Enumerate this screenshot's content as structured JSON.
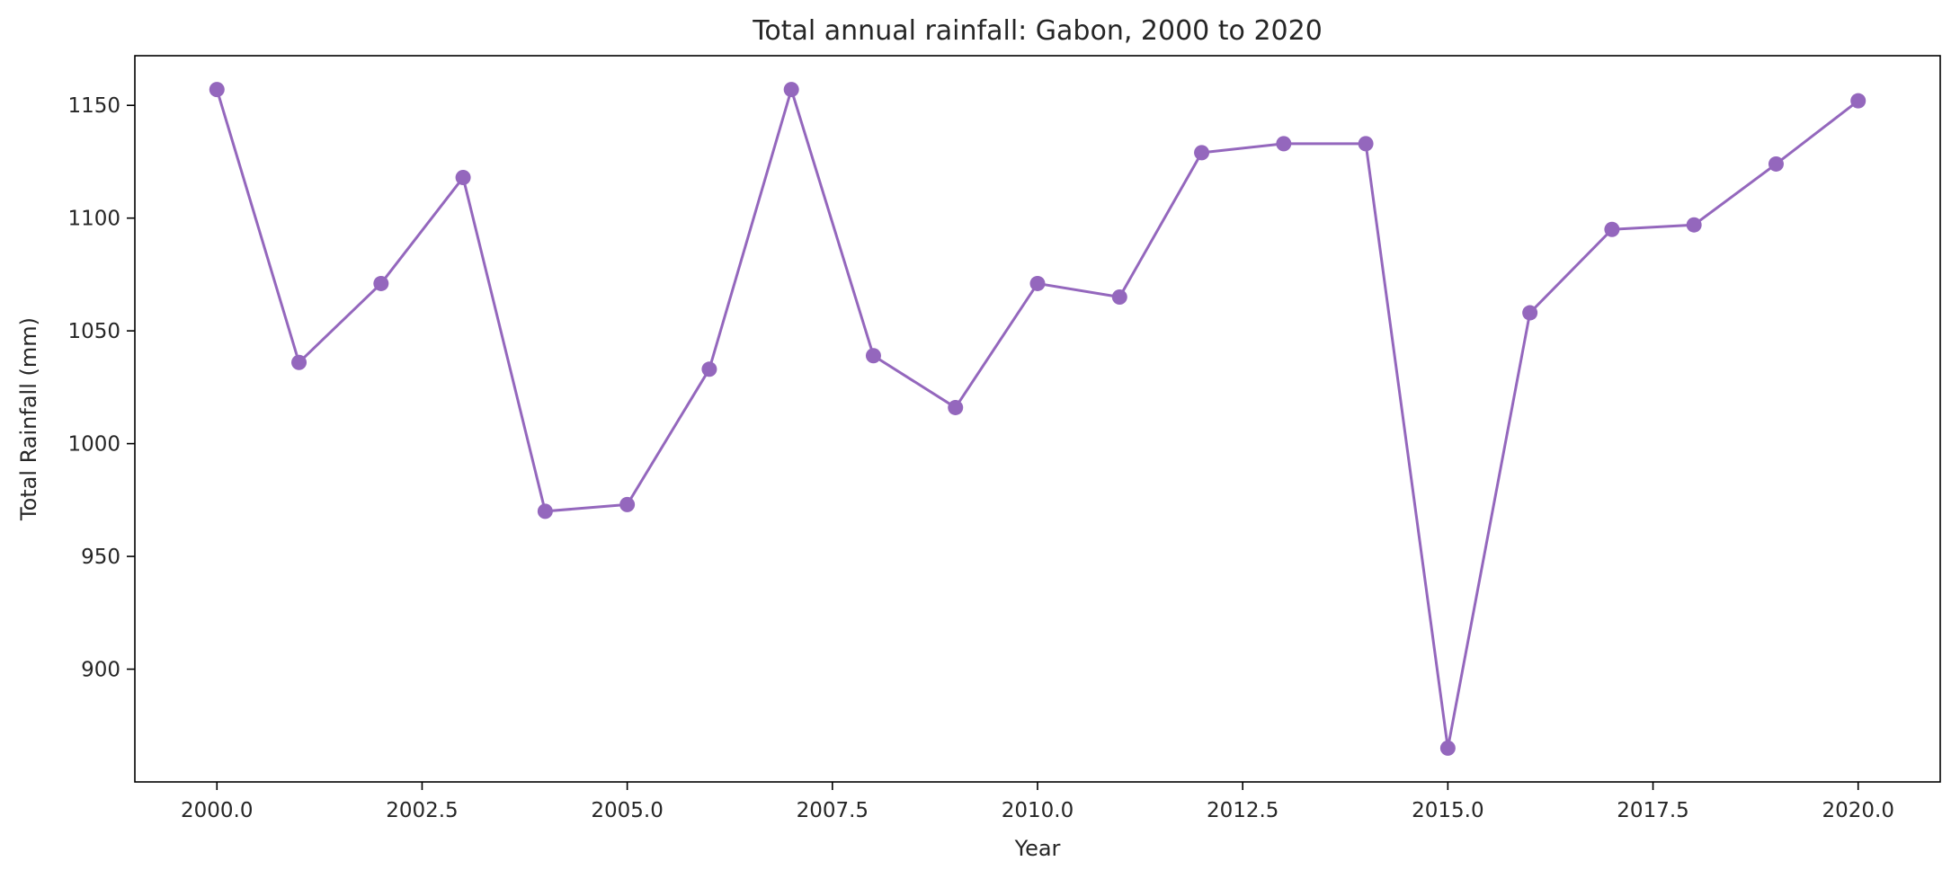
{
  "chart_data": {
    "type": "line",
    "title": "Total annual rainfall: Gabon, 2000 to 2020",
    "xlabel": "Year",
    "ylabel": "Total Rainfall (mm)",
    "xlim": [
      1999.0,
      2021.0
    ],
    "ylim": [
      850,
      1172
    ],
    "xticks": [
      2000.0,
      2002.5,
      2005.0,
      2007.5,
      2010.0,
      2012.5,
      2015.0,
      2017.5,
      2020.0
    ],
    "xtick_labels": [
      "2000.0",
      "2002.5",
      "2005.0",
      "2007.5",
      "2010.0",
      "2012.5",
      "2015.0",
      "2017.5",
      "2020.0"
    ],
    "yticks": [
      900,
      950,
      1000,
      1050,
      1100,
      1150
    ],
    "ytick_labels": [
      "900",
      "950",
      "1000",
      "1050",
      "1100",
      "1150"
    ],
    "grid": false,
    "legend": "none",
    "series": [
      {
        "color": "#9467bd",
        "marker": "circle",
        "x": [
          2000,
          2001,
          2002,
          2003,
          2004,
          2005,
          2006,
          2007,
          2008,
          2009,
          2010,
          2011,
          2012,
          2013,
          2014,
          2015,
          2016,
          2017,
          2018,
          2019,
          2020
        ],
        "y": [
          1157,
          1036,
          1071,
          1118,
          970,
          973,
          1033,
          1157,
          1039,
          1016,
          1071,
          1065,
          1129,
          1133,
          1133,
          865,
          1058,
          1095,
          1097,
          1124,
          1152
        ]
      }
    ]
  }
}
